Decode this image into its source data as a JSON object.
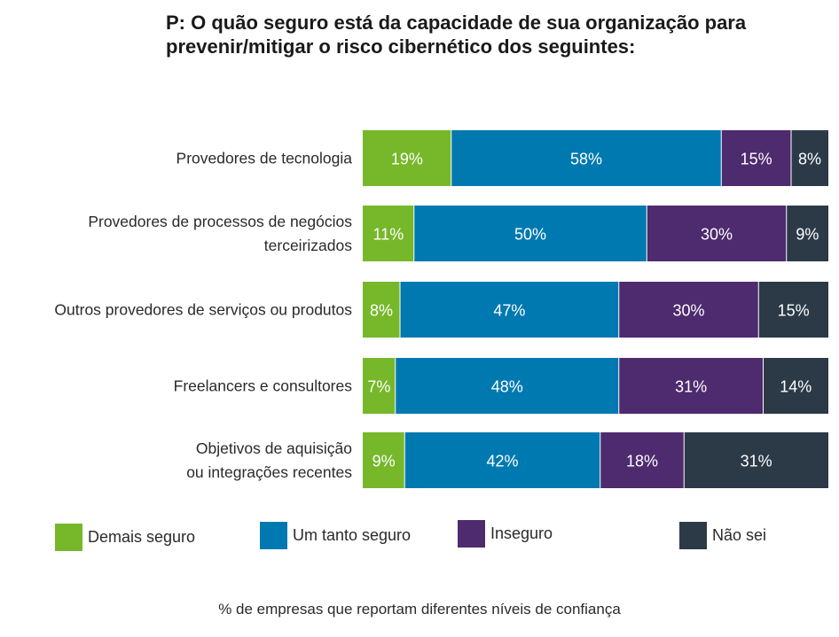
{
  "title": {
    "line1": "P: O quão seguro está da capacidade de sua organização para",
    "line2": "prevenir/mitigar o risco cibernético dos seguintes:"
  },
  "chart_data": {
    "type": "bar",
    "orientation": "horizontal",
    "stacked": true,
    "percent_stacked": true,
    "categories": [
      [
        "Provedores de tecnologia"
      ],
      [
        "Provedores de processos de negócios",
        "terceirizados"
      ],
      [
        "Outros provedores de serviços ou produtos"
      ],
      [
        "Freelancers e consultores"
      ],
      [
        "Objetivos de aquisição",
        "ou integrações recentes"
      ]
    ],
    "series": [
      {
        "name": "Demais seguro",
        "color": "#76b82a",
        "values": [
          19,
          11,
          8,
          7,
          9
        ]
      },
      {
        "name": "Um tanto seguro",
        "color": "#0079b0",
        "values": [
          58,
          50,
          47,
          48,
          42
        ]
      },
      {
        "name": "Inseguro",
        "color": "#4e2a6e",
        "values": [
          15,
          30,
          30,
          31,
          18
        ]
      },
      {
        "name": "Não sei",
        "color": "#2c3a48",
        "values": [
          8,
          9,
          15,
          14,
          31
        ]
      }
    ],
    "value_suffix": "%",
    "xlabel": "% de empresas que reportam diferentes níveis de confiança",
    "legend_position": "bottom"
  }
}
